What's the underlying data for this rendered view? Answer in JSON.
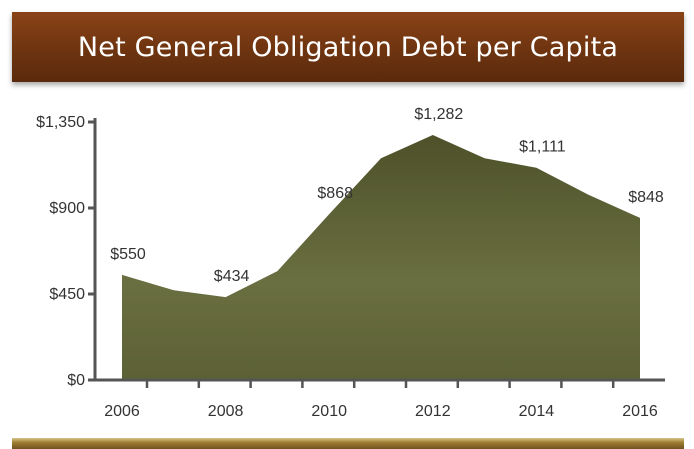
{
  "chart_data": {
    "type": "area",
    "title": "Net General Obligation Debt per Capita",
    "x": [
      2006,
      2007,
      2008,
      2009,
      2010,
      2011,
      2012,
      2013,
      2014,
      2015,
      2016
    ],
    "values": [
      550,
      470,
      434,
      570,
      868,
      1160,
      1282,
      1160,
      1111,
      970,
      848
    ],
    "x_tick_labels": [
      "2006",
      "2008",
      "2010",
      "2012",
      "2014",
      "2016"
    ],
    "y_tick_labels": [
      "$0",
      "$450",
      "$900",
      "$1,350"
    ],
    "y_ticks": [
      0,
      450,
      900,
      1350
    ],
    "data_labels": [
      {
        "x": 2006,
        "text": "$550"
      },
      {
        "x": 2008,
        "text": "$434"
      },
      {
        "x": 2010,
        "text": "$868"
      },
      {
        "x": 2012,
        "text": "$1,282"
      },
      {
        "x": 2014,
        "text": "$1,111"
      },
      {
        "x": 2016,
        "text": "$848"
      }
    ],
    "ylim": [
      0,
      1350
    ],
    "xlabel": "",
    "ylabel": "",
    "grid": false,
    "colors": {
      "area": "#5f6437",
      "banner": "#7a3b13",
      "axis": "#555555"
    }
  }
}
